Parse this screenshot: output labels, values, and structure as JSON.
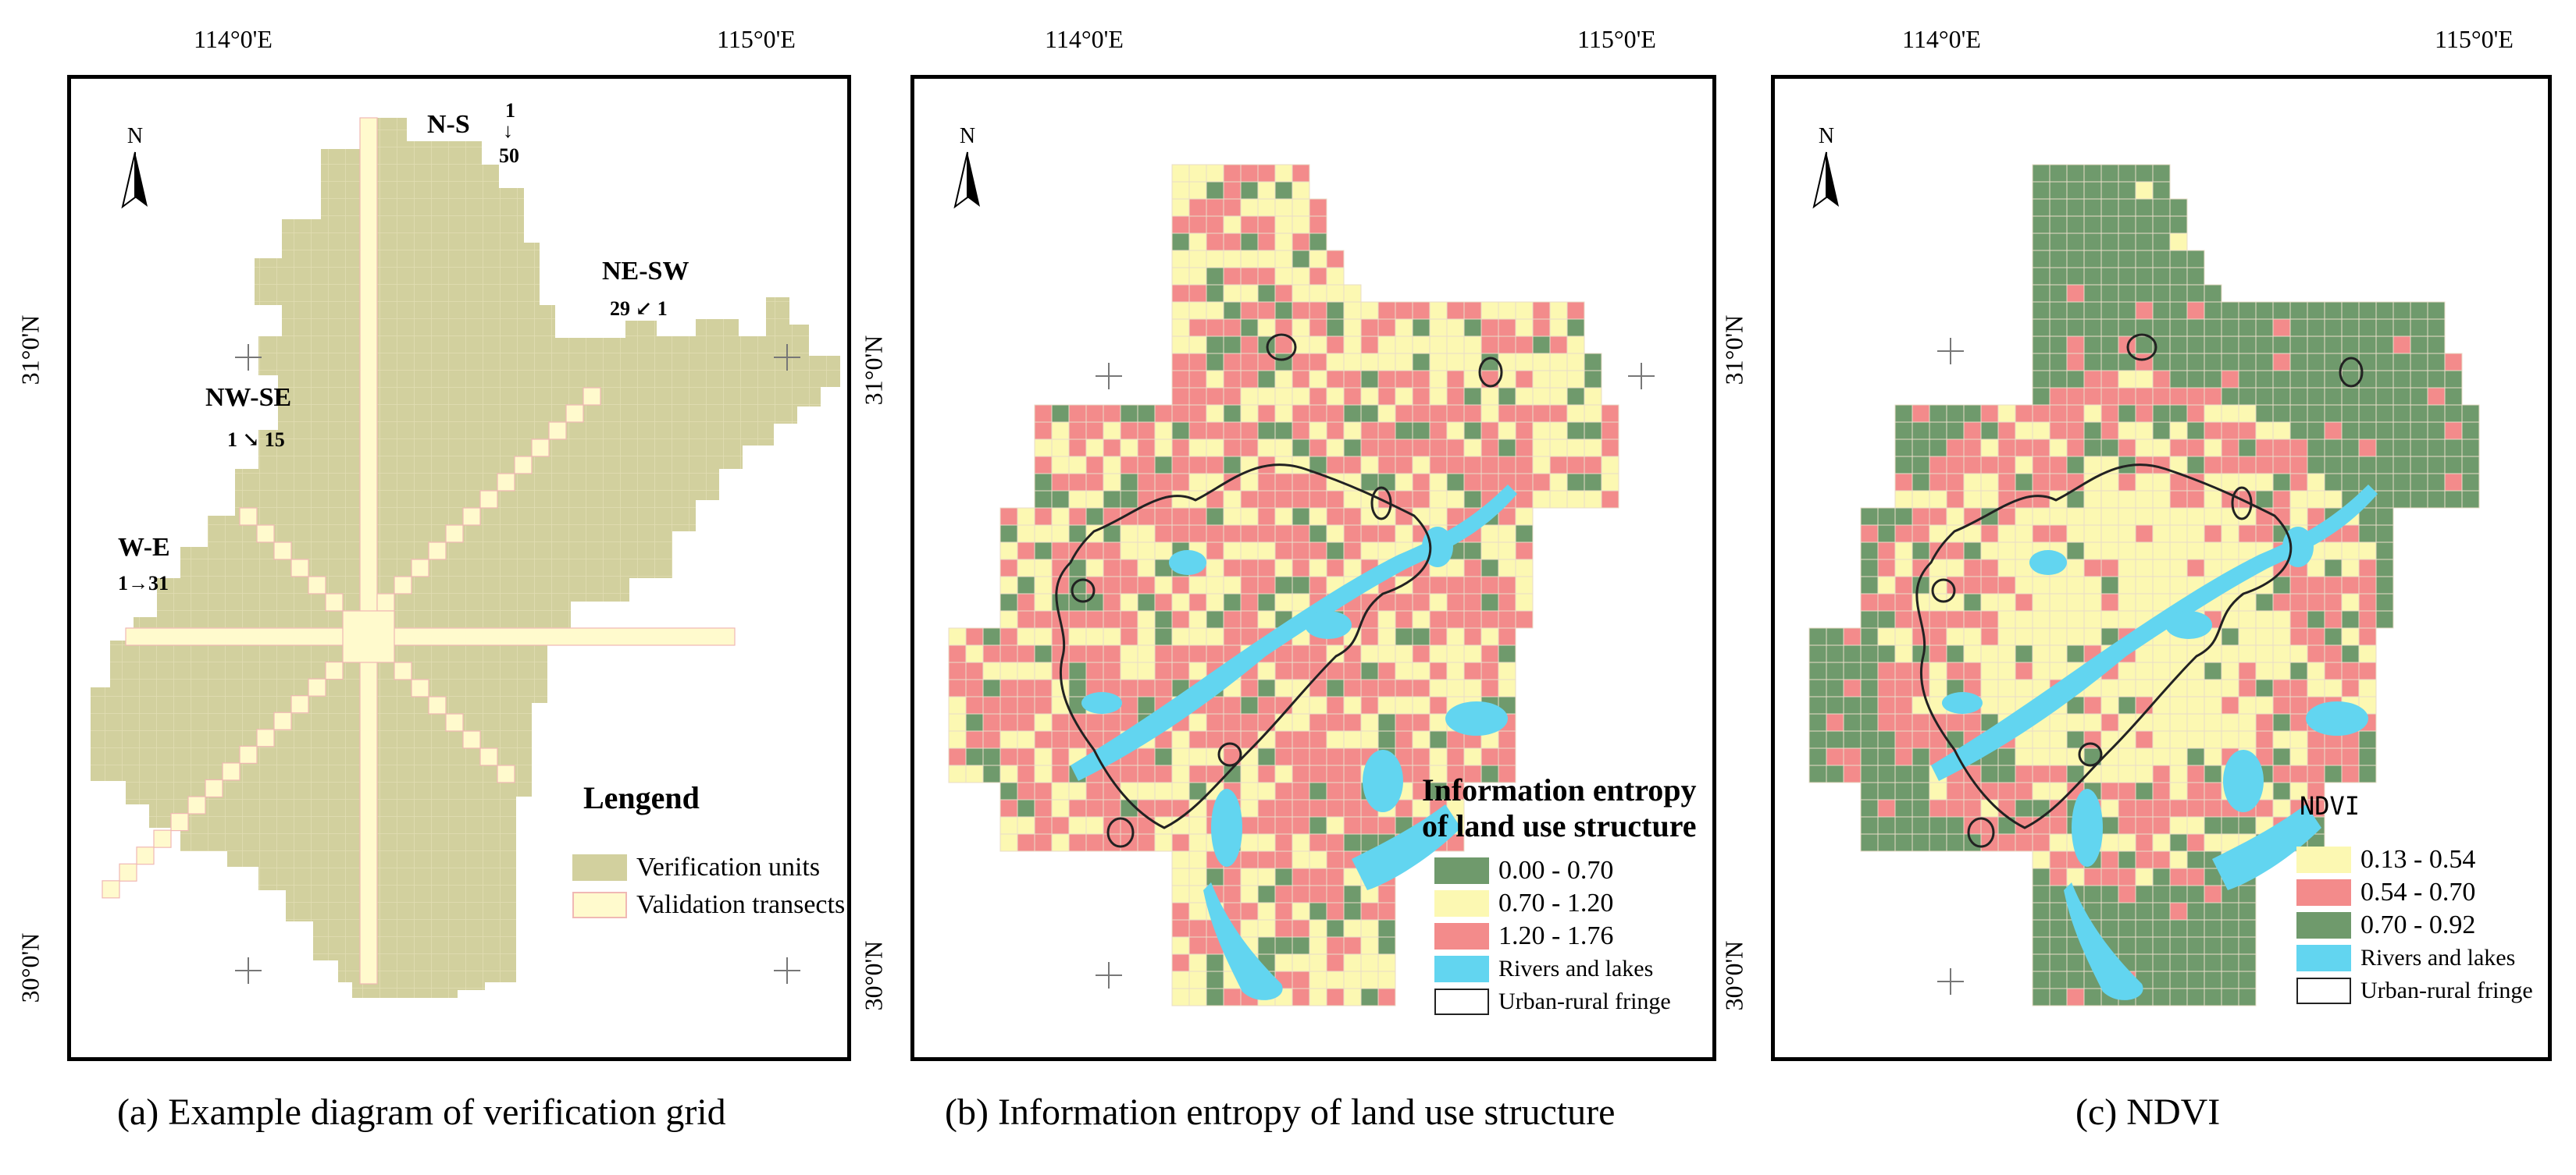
{
  "colors": {
    "verification_unit": "#d2d09e",
    "validation_transect": "#fffacd",
    "grid_line": "#f0b8b4",
    "entropy_low": "#6f9a6c",
    "entropy_mid": "#fcf8b2",
    "entropy_high": "#f38b8b",
    "rivers": "#62d5f0",
    "fringe_outline": "#222222"
  },
  "axes": {
    "lon_labels": [
      "114°0'E",
      "115°0'E"
    ],
    "lat_labels": [
      "31°0'N",
      "30°0'N"
    ],
    "north_label": "N"
  },
  "panel_a": {
    "caption": "(a) Example diagram of verification grid",
    "transects": {
      "ns": {
        "name": "N-S",
        "range_start": "1",
        "arrow": "↓",
        "range_end": "50"
      },
      "nesw": {
        "name": "NE-SW",
        "range": "29 ↙ 1"
      },
      "nwse": {
        "name": "NW-SE",
        "range": "1 ↘ 15"
      },
      "we": {
        "name": "W-E",
        "range": "1→31"
      }
    },
    "legend": {
      "title": "Lengend",
      "items": [
        "Verification units",
        "Validation transects"
      ]
    }
  },
  "panel_b": {
    "caption": "(b) Information entropy of land use structure",
    "legend": {
      "title_line1": "Information entropy",
      "title_line2": "of land use structure",
      "items": [
        "0.00 - 0.70",
        "0.70 - 1.20",
        "1.20 - 1.76",
        "Rivers and lakes",
        "Urban-rural fringe"
      ]
    }
  },
  "panel_c": {
    "caption": "(c) NDVI",
    "legend": {
      "title": "NDVI",
      "items": [
        "0.13 - 0.54",
        "0.54 - 0.70",
        "0.70 - 0.92",
        "Rivers and lakes",
        "Urban-rural fringe"
      ]
    }
  }
}
